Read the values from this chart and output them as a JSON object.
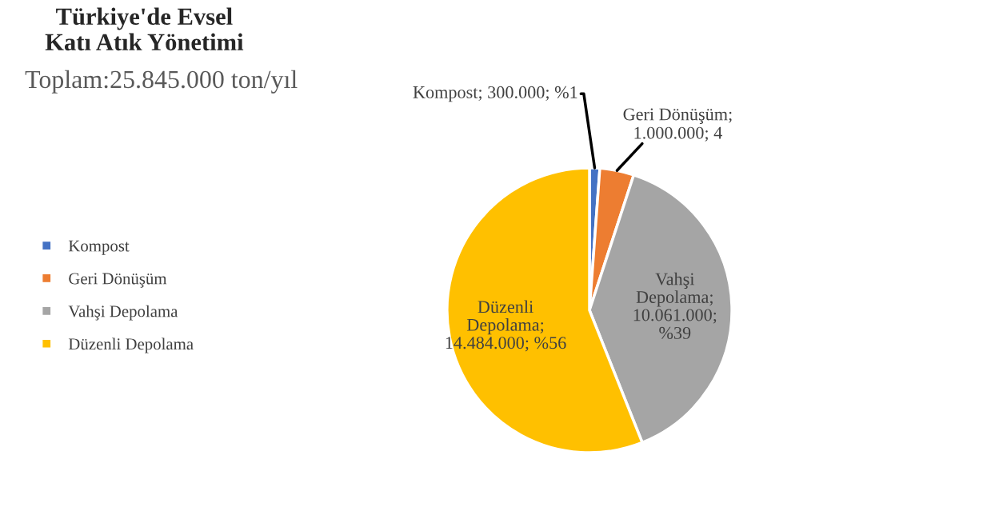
{
  "chart_data": {
    "type": "pie",
    "title": "Türkiye'de Evsel\nKatı Atık Yönetimi",
    "subtitle": "Toplam:25.845.000 ton/yıl",
    "categories": [
      "Kompost",
      "Geri Dönüşüm",
      "Vahşi Depolama",
      "Düzenli Depolama"
    ],
    "values": [
      300000,
      1000000,
      10061000,
      14484000
    ],
    "colors": [
      "#4472c4",
      "#ed7d31",
      "#a5a5a5",
      "#ffc000"
    ],
    "value_labels": [
      "Kompost; 300.000; %1",
      "Geri Dönüşüm;\n1.000.000; 4",
      "Vahşi\nDepolama;\n10.061.000;\n%39",
      "Düzenli\nDepolama;\n14.484.000; %56"
    ],
    "legend": "left"
  }
}
